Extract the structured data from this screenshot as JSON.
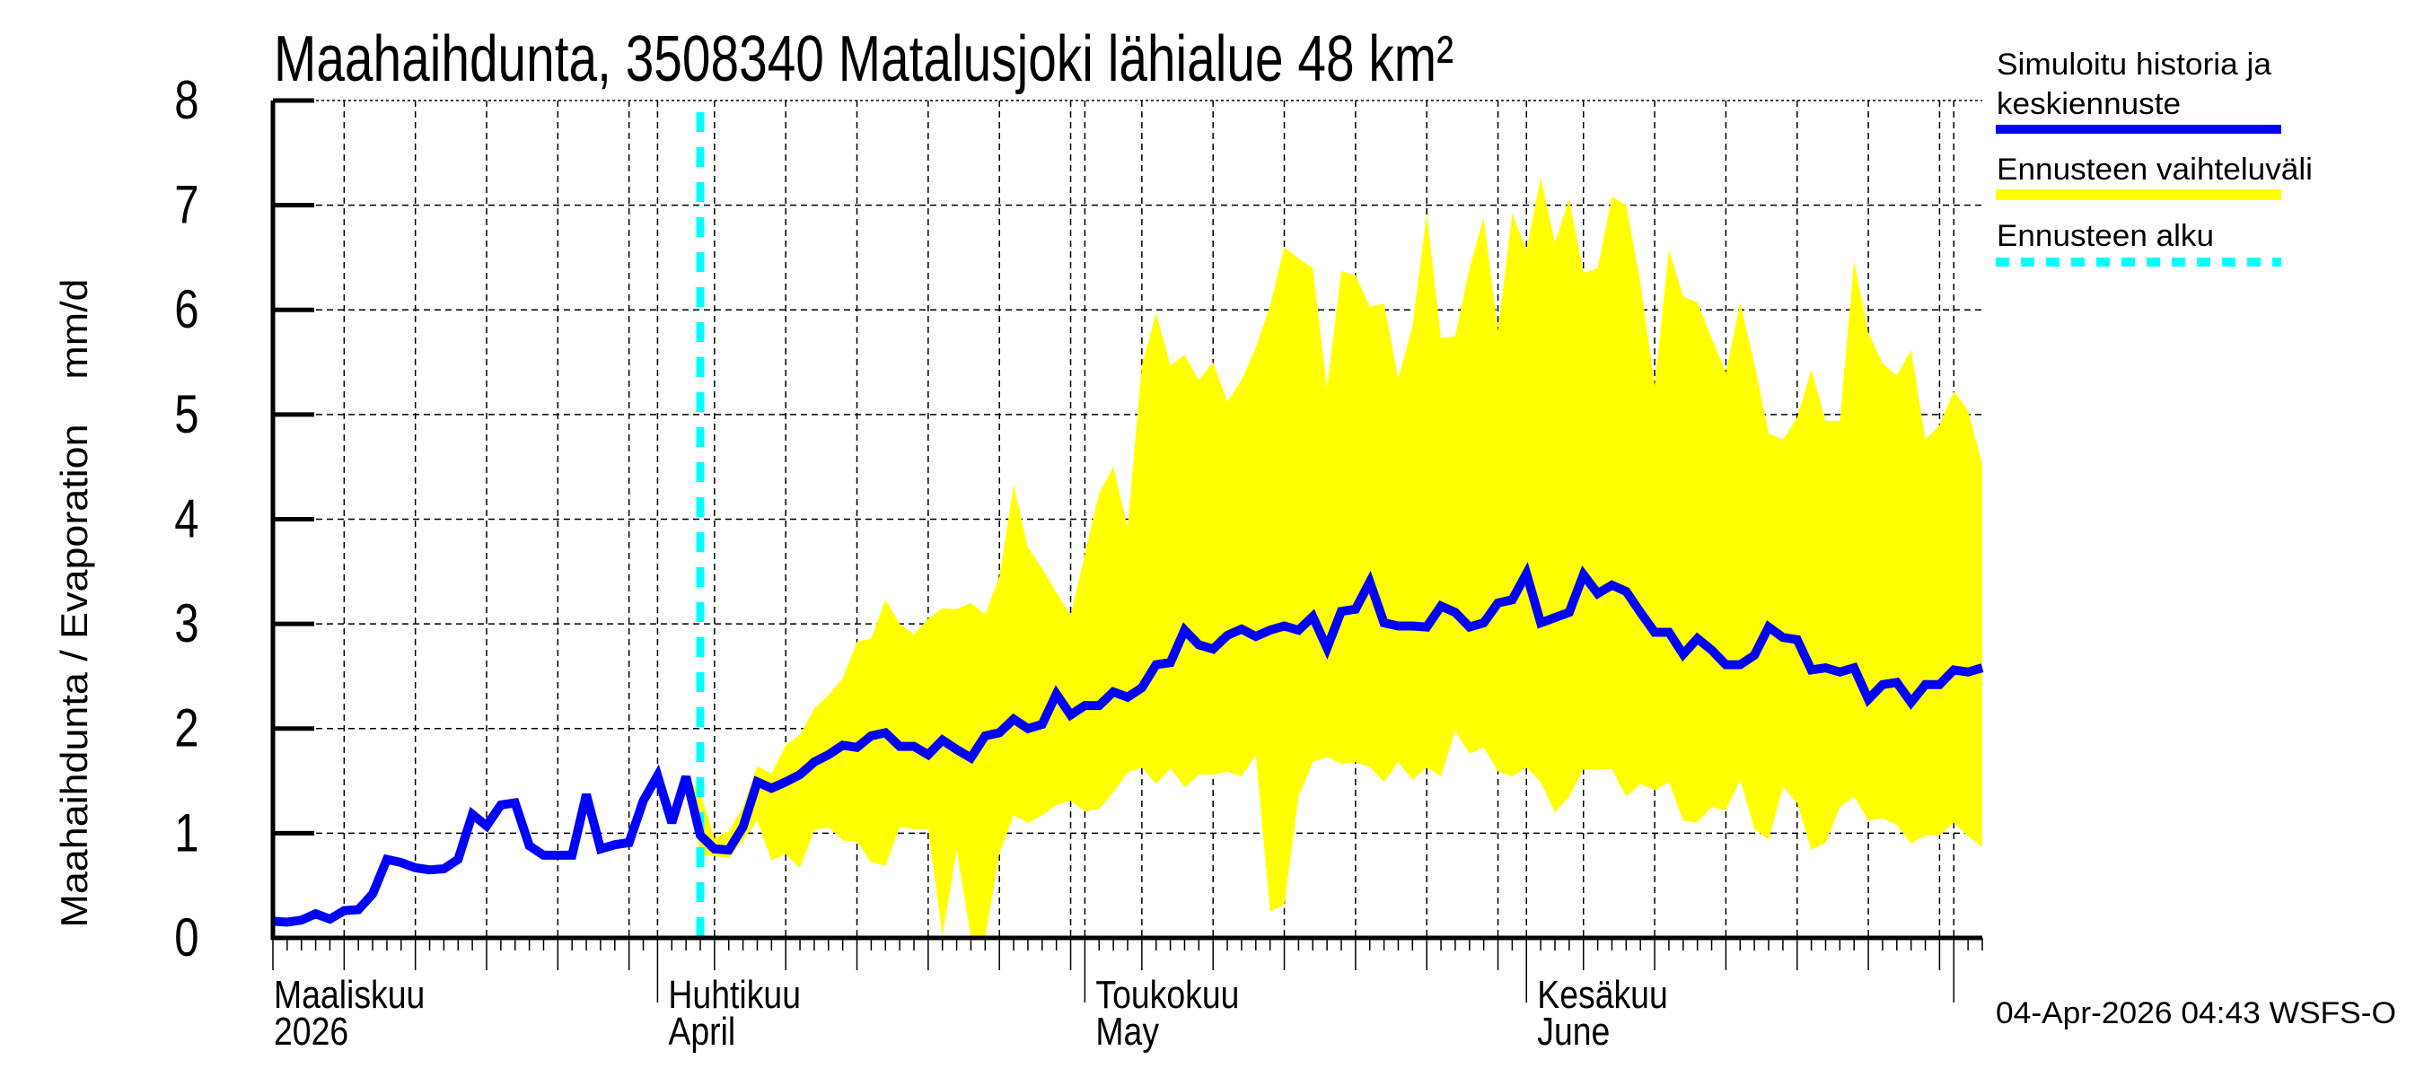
{
  "chart_data": {
    "type": "area",
    "title": "Maahaihdunta, 3508340 Matalusjoki lähialue 48 km²",
    "ylabel": "Maahaihdunta / Evaporation    mm/d",
    "xlabel": "",
    "ylim": [
      0,
      8
    ],
    "yticks": [
      "0",
      "1",
      "2",
      "3",
      "4",
      "5",
      "6",
      "7",
      "8"
    ],
    "xlim": [
      "2026-03-05",
      "2026-07-03"
    ],
    "grid": true,
    "legend_position": "right",
    "month_labels": [
      {
        "date": "2026-03-01",
        "fi": "Maaliskuu",
        "en": "2026"
      },
      {
        "date": "2026-04-01",
        "fi": "Huhtikuu",
        "en": "April"
      },
      {
        "date": "2026-05-01",
        "fi": "Toukokuu",
        "en": "May"
      },
      {
        "date": "2026-06-01",
        "fi": "Kesäkuu",
        "en": "June"
      }
    ],
    "forecast_start": "2026-04-04",
    "timestamp": "04-Apr-2026 04:43 WSFS-O",
    "colors": {
      "line": "#0000ff",
      "band": "#ffff00",
      "forecast_start": "#00ffff"
    },
    "series": [
      {
        "name": "Simuloitu historia ja keskiennuste",
        "legend_lines": [
          "Simuloitu historia ja",
          "keskiennuste"
        ],
        "start_date": "2026-03-05",
        "step_days": 1,
        "values": [
          0.16,
          0.15,
          0.17,
          0.23,
          0.18,
          0.26,
          0.27,
          0.42,
          0.75,
          0.72,
          0.67,
          0.65,
          0.66,
          0.75,
          1.18,
          1.07,
          1.27,
          1.29,
          0.88,
          0.79,
          0.79,
          0.79,
          1.37,
          0.85,
          0.89,
          0.91,
          1.31,
          1.55,
          1.1,
          1.54,
          0.98,
          0.85,
          0.84,
          1.06,
          1.49,
          1.43,
          1.49,
          1.56,
          1.68,
          1.75,
          1.84,
          1.82,
          1.93,
          1.96,
          1.83,
          1.83,
          1.75,
          1.89,
          1.8,
          1.72,
          1.93,
          1.96,
          2.09,
          2.0,
          2.04,
          2.33,
          2.13,
          2.22,
          2.22,
          2.35,
          2.3,
          2.39,
          2.61,
          2.63,
          2.94,
          2.8,
          2.76,
          2.89,
          2.95,
          2.88,
          2.94,
          2.98,
          2.94,
          3.07,
          2.77,
          3.12,
          3.14,
          3.4,
          3.01,
          2.98,
          2.98,
          2.97,
          3.17,
          3.11,
          2.97,
          3.01,
          3.2,
          3.23,
          3.48,
          3.01,
          3.06,
          3.11,
          3.47,
          3.29,
          3.37,
          3.31,
          3.11,
          2.92,
          2.92,
          2.71,
          2.86,
          2.75,
          2.61,
          2.61,
          2.7,
          2.97,
          2.87,
          2.85,
          2.56,
          2.58,
          2.54,
          2.58,
          2.28,
          2.42,
          2.44,
          2.25,
          2.42,
          2.42,
          2.56,
          2.54,
          2.58
        ]
      },
      {
        "name": "Ennusteen vaihteluväli",
        "start_date": "2026-04-03",
        "step_days": 1,
        "upper": [
          1.54,
          1.39,
          0.95,
          1.02,
          1.25,
          1.64,
          1.57,
          1.84,
          1.94,
          2.19,
          2.32,
          2.48,
          2.83,
          2.86,
          3.23,
          3.0,
          2.9,
          3.05,
          3.15,
          3.14,
          3.2,
          3.09,
          3.45,
          4.33,
          3.73,
          3.53,
          3.3,
          3.08,
          3.67,
          4.25,
          4.5,
          3.92,
          5.47,
          5.97,
          5.47,
          5.57,
          5.33,
          5.5,
          5.12,
          5.33,
          5.64,
          6.04,
          6.6,
          6.49,
          6.4,
          5.25,
          6.37,
          6.33,
          6.03,
          6.06,
          5.34,
          5.85,
          6.92,
          5.73,
          5.75,
          6.4,
          6.88,
          5.8,
          6.92,
          6.57,
          7.26,
          6.64,
          7.06,
          6.35,
          6.4,
          7.08,
          7.0,
          6.26,
          5.28,
          6.57,
          6.13,
          6.07,
          5.73,
          5.4,
          6.07,
          5.49,
          4.82,
          4.76,
          4.97,
          5.43,
          4.94,
          4.94,
          6.47,
          5.78,
          5.49,
          5.37,
          5.62,
          4.76,
          4.9,
          5.22,
          5.04,
          4.52
        ],
        "lower": [
          1.54,
          0.8,
          0.78,
          0.76,
          0.93,
          1.12,
          0.74,
          0.8,
          0.67,
          1.03,
          1.06,
          0.93,
          0.92,
          0.72,
          0.69,
          1.06,
          1.04,
          1.04,
          0.02,
          0.84,
          0.0,
          0.0,
          0.81,
          1.17,
          1.1,
          1.17,
          1.27,
          1.31,
          1.21,
          1.23,
          1.39,
          1.58,
          1.63,
          1.47,
          1.62,
          1.44,
          1.56,
          1.56,
          1.59,
          1.54,
          1.75,
          0.25,
          0.32,
          1.35,
          1.68,
          1.73,
          1.66,
          1.68,
          1.63,
          1.49,
          1.68,
          1.51,
          1.63,
          1.54,
          1.98,
          1.76,
          1.82,
          1.59,
          1.54,
          1.63,
          1.49,
          1.2,
          1.35,
          1.61,
          1.61,
          1.61,
          1.35,
          1.47,
          1.41,
          1.49,
          1.12,
          1.1,
          1.25,
          1.22,
          1.51,
          1.04,
          0.94,
          1.44,
          1.29,
          0.84,
          0.91,
          1.25,
          1.35,
          1.12,
          1.14,
          1.08,
          0.9,
          0.98,
          0.98,
          1.1,
          0.97,
          0.87
        ]
      },
      {
        "name": "Ennusteen alku"
      }
    ]
  }
}
